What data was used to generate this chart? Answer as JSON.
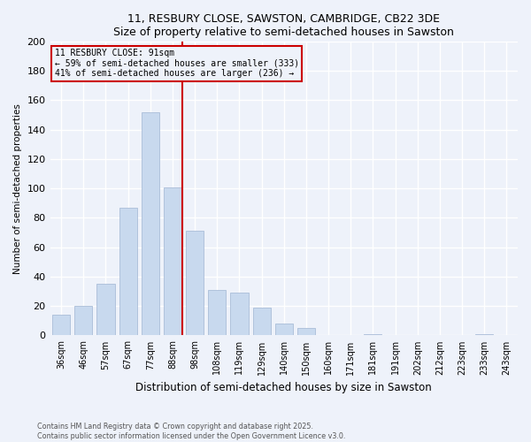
{
  "title1": "11, RESBURY CLOSE, SAWSTON, CAMBRIDGE, CB22 3DE",
  "title2": "Size of property relative to semi-detached houses in Sawston",
  "xlabel": "Distribution of semi-detached houses by size in Sawston",
  "ylabel": "Number of semi-detached properties",
  "categories": [
    "36sqm",
    "46sqm",
    "57sqm",
    "67sqm",
    "77sqm",
    "88sqm",
    "98sqm",
    "108sqm",
    "119sqm",
    "129sqm",
    "140sqm",
    "150sqm",
    "160sqm",
    "171sqm",
    "181sqm",
    "191sqm",
    "202sqm",
    "212sqm",
    "223sqm",
    "233sqm",
    "243sqm"
  ],
  "values": [
    14,
    20,
    35,
    87,
    152,
    101,
    71,
    31,
    29,
    19,
    8,
    5,
    0,
    0,
    1,
    0,
    0,
    0,
    0,
    1,
    0
  ],
  "bar_color": "#c8d9ee",
  "bar_edgecolor": "#aabdd8",
  "vline_color": "#cc0000",
  "annotation_title": "11 RESBURY CLOSE: 91sqm",
  "annotation_line2": "← 59% of semi-detached houses are smaller (333)",
  "annotation_line3": "41% of semi-detached houses are larger (236) →",
  "annotation_box_edgecolor": "#cc0000",
  "ylim": [
    0,
    200
  ],
  "yticks": [
    0,
    20,
    40,
    60,
    80,
    100,
    120,
    140,
    160,
    180,
    200
  ],
  "footnote1": "Contains HM Land Registry data © Crown copyright and database right 2025.",
  "footnote2": "Contains public sector information licensed under the Open Government Licence v3.0.",
  "bg_color": "#eef2fa",
  "plot_bg_color": "#eef2fa",
  "grid_color": "#ffffff"
}
